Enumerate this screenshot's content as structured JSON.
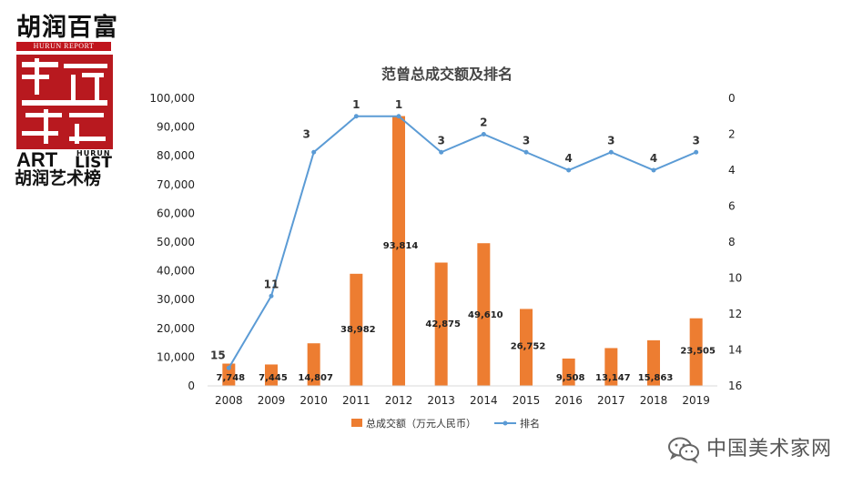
{
  "logo": {
    "top_text": "胡润百富",
    "hurun_report": "HURUN REPORT",
    "art": "ART",
    "hurun_small": "HURUN",
    "list": "LIST",
    "bottom_text": "胡润艺术榜"
  },
  "watermark": "中国美术家网",
  "colors": {
    "bar": "#ed7d31",
    "line": "#5b9bd5",
    "axis": "#d9d9d9"
  },
  "chart_data": {
    "type": "bar",
    "title": "范曾总成交额及排名",
    "categories": [
      "2008",
      "2009",
      "2010",
      "2011",
      "2012",
      "2013",
      "2014",
      "2015",
      "2016",
      "2017",
      "2018",
      "2019"
    ],
    "y_ticks": [
      "100,000",
      "90,000",
      "80,000",
      "70,000",
      "60,000",
      "50,000",
      "40,000",
      "30,000",
      "20,000",
      "10,000",
      "0"
    ],
    "y2_ticks": [
      "0",
      "2",
      "4",
      "6",
      "8",
      "10",
      "12",
      "14",
      "16"
    ],
    "ylim": [
      0,
      100000
    ],
    "y2lim": [
      0,
      16
    ],
    "y2_inverted": true,
    "series": [
      {
        "name": "总成交额（万元人民币）",
        "type": "bar",
        "axis": "left",
        "values": [
          7748,
          7445,
          14807,
          38982,
          93814,
          42875,
          49610,
          26752,
          9508,
          13147,
          15863,
          23505
        ],
        "labels": [
          "7,748",
          "7,445",
          "14,807",
          "38,982",
          "93,814",
          "42,875",
          "49,610",
          "26,752",
          "9,508",
          "13,147",
          "15,863",
          "23,505"
        ]
      },
      {
        "name": "排名",
        "type": "line",
        "axis": "right",
        "values": [
          15,
          11,
          3,
          1,
          1,
          3,
          2,
          3,
          4,
          3,
          4,
          3
        ],
        "labels": [
          "15",
          "11",
          "3",
          "1",
          "1",
          "3",
          "2",
          "3",
          "4",
          "3",
          "4",
          "3"
        ]
      }
    ],
    "legend_position": "bottom"
  }
}
